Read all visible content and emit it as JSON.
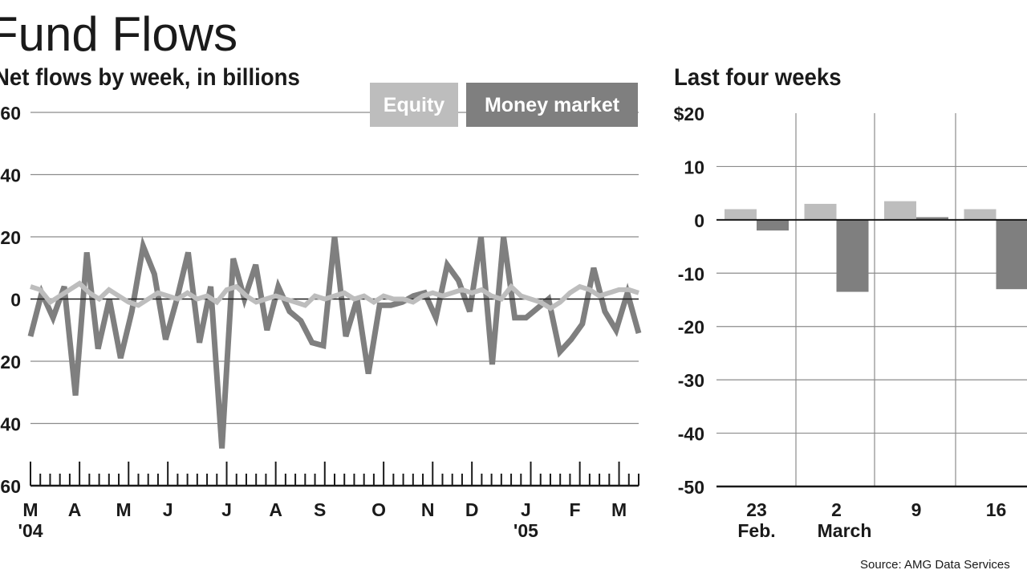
{
  "header": {
    "title": "Fund Flows",
    "left_subtitle": "Net flows by week, in billions",
    "right_subtitle": "Last four weeks",
    "source": "Source: AMG Data Services"
  },
  "colors": {
    "equity": "#bdbdbd",
    "money_market": "#7f7f7f",
    "grid": "#8c8c8c",
    "axis": "#1a1a1a"
  },
  "chart_data": [
    {
      "type": "line",
      "title": "Net flows by week, in billions",
      "ylim": [
        -60,
        60
      ],
      "yticks": [
        60,
        40,
        20,
        0,
        -20,
        -40,
        -60
      ],
      "ytick_labels": [
        "60",
        "40",
        "20",
        "0",
        "20",
        "40",
        "60"
      ],
      "month_labels": [
        "M",
        "A",
        "M",
        "J",
        "J",
        "A",
        "S",
        "O",
        "N",
        "D",
        "J",
        "F",
        "M"
      ],
      "month_label_week": [
        0,
        4.5,
        9.5,
        14,
        20,
        25,
        29.5,
        35.5,
        40.5,
        45,
        50.5,
        55.5,
        60
      ],
      "year_labels": [
        {
          "text": "'04",
          "week": 0
        },
        {
          "text": "'05",
          "week": 50.5
        }
      ],
      "legend_position": "top-right",
      "grid": true,
      "series": [
        {
          "name": "Equity",
          "color": "#bdbdbd",
          "values": [
            4,
            3,
            -1,
            1,
            3,
            5,
            2,
            0,
            3,
            1,
            -1,
            -2,
            0,
            2,
            1,
            0,
            2,
            0,
            1,
            -1,
            3,
            4,
            1,
            -1,
            0,
            1,
            0,
            -1,
            -2,
            1,
            0,
            1,
            2,
            0,
            1,
            -1,
            1,
            0,
            0,
            -1,
            1,
            2,
            1,
            2,
            3,
            2,
            3,
            1,
            0,
            4,
            1,
            0,
            -1,
            -3,
            -1,
            2,
            4,
            3,
            1,
            2,
            3,
            3,
            2
          ]
        },
        {
          "name": "Money market",
          "color": "#7f7f7f",
          "values": [
            -12,
            2,
            -6,
            4,
            -31,
            15,
            -16,
            0,
            -19,
            -4,
            17,
            8,
            -13,
            0,
            15,
            -14,
            4,
            -48,
            13,
            0,
            11,
            -10,
            4,
            -4,
            -7,
            -14,
            -15,
            20,
            -12,
            0,
            -24,
            -2,
            -2,
            -1,
            1,
            2,
            -6,
            11,
            6,
            -4,
            20,
            -21,
            20,
            -6,
            -6,
            -3,
            0,
            -17,
            -13,
            -8,
            10,
            -4,
            -10,
            2,
            -11
          ]
        }
      ]
    },
    {
      "type": "bar",
      "title": "Last four weeks",
      "ylim": [
        -50,
        20
      ],
      "yticks": [
        20,
        10,
        0,
        -10,
        -20,
        -30,
        -40,
        -50
      ],
      "ytick_labels": [
        "$20",
        "10",
        "0",
        "-10",
        "-20",
        "-30",
        "-40",
        "-50"
      ],
      "categories": [
        "23",
        "2",
        "9",
        "16"
      ],
      "month_labels": [
        "Feb.",
        "March",
        "",
        ""
      ],
      "grid": true,
      "series": [
        {
          "name": "Equity",
          "color": "#bdbdbd",
          "values": [
            2,
            3,
            3.5,
            2
          ]
        },
        {
          "name": "Money market",
          "color": "#7f7f7f",
          "values": [
            -2,
            -13.5,
            0.5,
            -13
          ]
        }
      ]
    }
  ]
}
